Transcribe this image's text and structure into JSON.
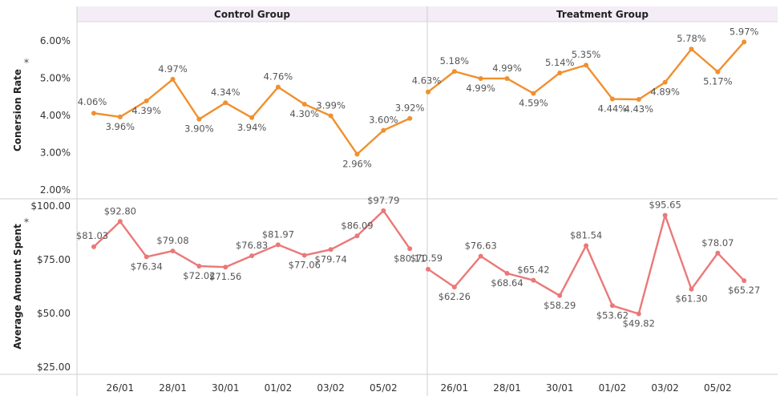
{
  "chart_data": {
    "type": "line",
    "columns": [
      "Control Group",
      "Treatment Group"
    ],
    "x_tick_labels": [
      "26/01",
      "28/01",
      "30/01",
      "01/02",
      "03/02",
      "05/02"
    ],
    "panels": [
      {
        "measure": "Conversion Rate",
        "axis_label": "Conersion Rate",
        "ylim": [
          2,
          6
        ],
        "y_ticks": [
          2,
          3,
          4,
          5,
          6
        ],
        "y_tick_labels": [
          "2.00%",
          "3.00%",
          "4.00%",
          "5.00%",
          "6.00%"
        ],
        "color": "#f0902e",
        "series": [
          {
            "group": "Control Group",
            "values": [
              4.06,
              3.96,
              4.39,
              4.97,
              3.9,
              4.34,
              3.94,
              4.76,
              4.3,
              3.99,
              2.96,
              3.6,
              3.92
            ],
            "labels": [
              "4.06%",
              "3.96%",
              "4.39%",
              "4.97%",
              "3.90%",
              "4.34%",
              "3.94%",
              "4.76%",
              "4.30%",
              "3.99%",
              "2.96%",
              "3.60%",
              "3.92%"
            ]
          },
          {
            "group": "Treatment Group",
            "values": [
              4.63,
              5.18,
              4.99,
              4.99,
              4.59,
              5.14,
              5.35,
              4.44,
              4.43,
              4.89,
              5.78,
              5.17,
              5.97
            ],
            "labels": [
              "4.63%",
              "5.18%",
              "4.99%",
              "4.99%",
              "4.59%",
              "5.14%",
              "5.35%",
              "4.44%",
              "4.43%",
              "4.89%",
              "5.78%",
              "5.17%",
              "5.97%"
            ]
          }
        ]
      },
      {
        "measure": "Average Amount Spent",
        "axis_label": "Average Amount Spent",
        "ylim": [
          25,
          100
        ],
        "y_ticks": [
          25,
          50,
          75,
          100
        ],
        "y_tick_labels": [
          "$25.00",
          "$50.00",
          "$75.00",
          "$100.00"
        ],
        "color": "#eb7878",
        "series": [
          {
            "group": "Control Group",
            "values": [
              81.03,
              92.8,
              76.34,
              79.08,
              72.02,
              71.56,
              76.83,
              81.97,
              77.06,
              79.74,
              86.09,
              97.79,
              80.11
            ],
            "labels": [
              "$81.03",
              "$92.80",
              "$76.34",
              "$79.08",
              "$72.02",
              "$71.56",
              "$76.83",
              "$81.97",
              "$77.06",
              "$79.74",
              "$86.09",
              "$97.79",
              "$80.11"
            ]
          },
          {
            "group": "Treatment Group",
            "values": [
              70.59,
              62.26,
              76.63,
              68.64,
              65.42,
              58.29,
              81.54,
              53.62,
              49.82,
              95.65,
              61.3,
              78.07,
              65.27
            ],
            "labels": [
              "$70.59",
              "$62.26",
              "$76.63",
              "$68.64",
              "$65.42",
              "$58.29",
              "$81.54",
              "$53.62",
              "$49.82",
              "$95.65",
              "$61.30",
              "$78.07",
              "$65.27"
            ]
          }
        ]
      }
    ],
    "grid": false,
    "legend": "none"
  }
}
